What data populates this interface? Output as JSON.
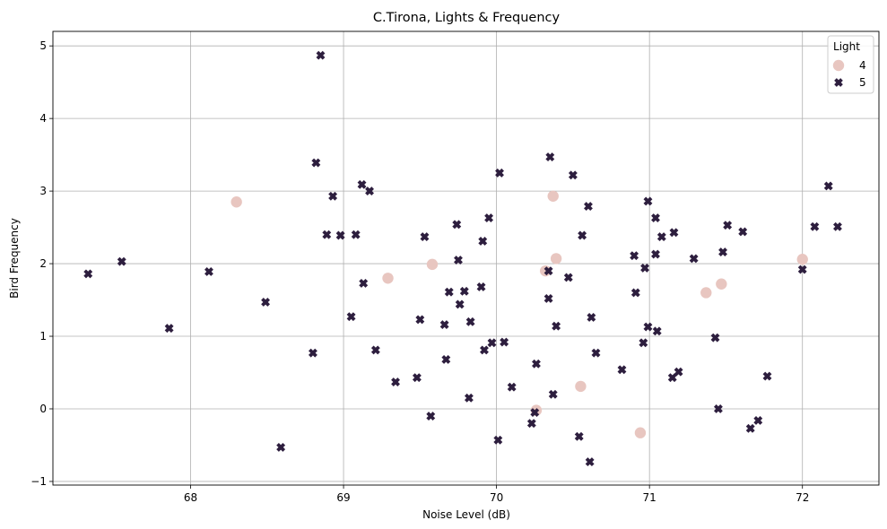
{
  "chart_data": {
    "type": "scatter",
    "title": "C.Tirona, Lights & Frequency",
    "xlabel": "Noise Level (dB)",
    "ylabel": "Bird Frequency",
    "xlim": [
      67.1,
      72.5
    ],
    "ylim": [
      -1.05,
      5.2
    ],
    "xticks": [
      68,
      69,
      70,
      71,
      72
    ],
    "yticks": [
      -1,
      0,
      1,
      2,
      3,
      4,
      5
    ],
    "grid": true,
    "legend": {
      "title": "Light",
      "placement": "top-right"
    },
    "series": [
      {
        "name": "4",
        "marker": "circle",
        "color": "#e8c6c0",
        "points": [
          [
            68.3,
            2.85
          ],
          [
            69.29,
            1.8
          ],
          [
            69.58,
            1.99
          ],
          [
            70.32,
            1.9
          ],
          [
            70.37,
            2.93
          ],
          [
            70.39,
            2.07
          ],
          [
            70.26,
            -0.02
          ],
          [
            70.55,
            0.31
          ],
          [
            70.94,
            -0.33
          ],
          [
            71.37,
            1.6
          ],
          [
            71.47,
            1.72
          ],
          [
            72.0,
            2.06
          ]
        ]
      },
      {
        "name": "5",
        "marker": "x",
        "color": "#2d1e3e",
        "points": [
          [
            67.33,
            1.86
          ],
          [
            67.55,
            2.03
          ],
          [
            67.86,
            1.11
          ],
          [
            68.12,
            1.89
          ],
          [
            68.49,
            1.47
          ],
          [
            68.59,
            -0.53
          ],
          [
            68.8,
            0.77
          ],
          [
            68.82,
            3.39
          ],
          [
            68.85,
            4.87
          ],
          [
            68.89,
            2.4
          ],
          [
            68.93,
            2.93
          ],
          [
            68.98,
            2.39
          ],
          [
            69.05,
            1.27
          ],
          [
            69.08,
            2.4
          ],
          [
            69.12,
            3.09
          ],
          [
            69.13,
            1.73
          ],
          [
            69.17,
            3.0
          ],
          [
            69.21,
            0.81
          ],
          [
            69.34,
            0.37
          ],
          [
            69.48,
            0.43
          ],
          [
            69.5,
            1.23
          ],
          [
            69.53,
            2.37
          ],
          [
            69.57,
            -0.1
          ],
          [
            69.66,
            1.16
          ],
          [
            69.67,
            0.68
          ],
          [
            69.69,
            1.61
          ],
          [
            69.74,
            2.54
          ],
          [
            69.75,
            2.05
          ],
          [
            69.76,
            1.44
          ],
          [
            69.79,
            1.62
          ],
          [
            69.82,
            0.15
          ],
          [
            69.83,
            1.2
          ],
          [
            69.9,
            1.68
          ],
          [
            69.91,
            2.31
          ],
          [
            69.92,
            0.81
          ],
          [
            69.95,
            2.63
          ],
          [
            69.97,
            0.91
          ],
          [
            70.01,
            -0.43
          ],
          [
            70.02,
            3.25
          ],
          [
            70.05,
            0.92
          ],
          [
            70.1,
            0.3
          ],
          [
            70.23,
            -0.2
          ],
          [
            70.25,
            -0.05
          ],
          [
            70.26,
            0.62
          ],
          [
            70.34,
            1.9
          ],
          [
            70.34,
            1.52
          ],
          [
            70.35,
            3.47
          ],
          [
            70.37,
            0.2
          ],
          [
            70.39,
            1.14
          ],
          [
            70.47,
            1.81
          ],
          [
            70.5,
            3.22
          ],
          [
            70.54,
            -0.38
          ],
          [
            70.56,
            2.39
          ],
          [
            70.6,
            2.79
          ],
          [
            70.61,
            -0.73
          ],
          [
            70.62,
            1.26
          ],
          [
            70.65,
            0.77
          ],
          [
            70.82,
            0.54
          ],
          [
            70.9,
            2.11
          ],
          [
            70.91,
            1.6
          ],
          [
            70.96,
            0.91
          ],
          [
            70.97,
            1.94
          ],
          [
            70.99,
            1.13
          ],
          [
            70.99,
            2.86
          ],
          [
            71.04,
            2.63
          ],
          [
            71.04,
            2.13
          ],
          [
            71.05,
            1.07
          ],
          [
            71.08,
            2.37
          ],
          [
            71.15,
            0.43
          ],
          [
            71.16,
            2.43
          ],
          [
            71.19,
            0.51
          ],
          [
            71.29,
            2.07
          ],
          [
            71.43,
            0.98
          ],
          [
            71.45,
            0.0
          ],
          [
            71.48,
            2.16
          ],
          [
            71.51,
            2.53
          ],
          [
            71.61,
            2.44
          ],
          [
            71.66,
            -0.27
          ],
          [
            71.71,
            -0.16
          ],
          [
            71.77,
            0.45
          ],
          [
            72.0,
            1.92
          ],
          [
            72.08,
            2.51
          ],
          [
            72.17,
            3.07
          ],
          [
            72.23,
            2.51
          ]
        ]
      }
    ]
  }
}
